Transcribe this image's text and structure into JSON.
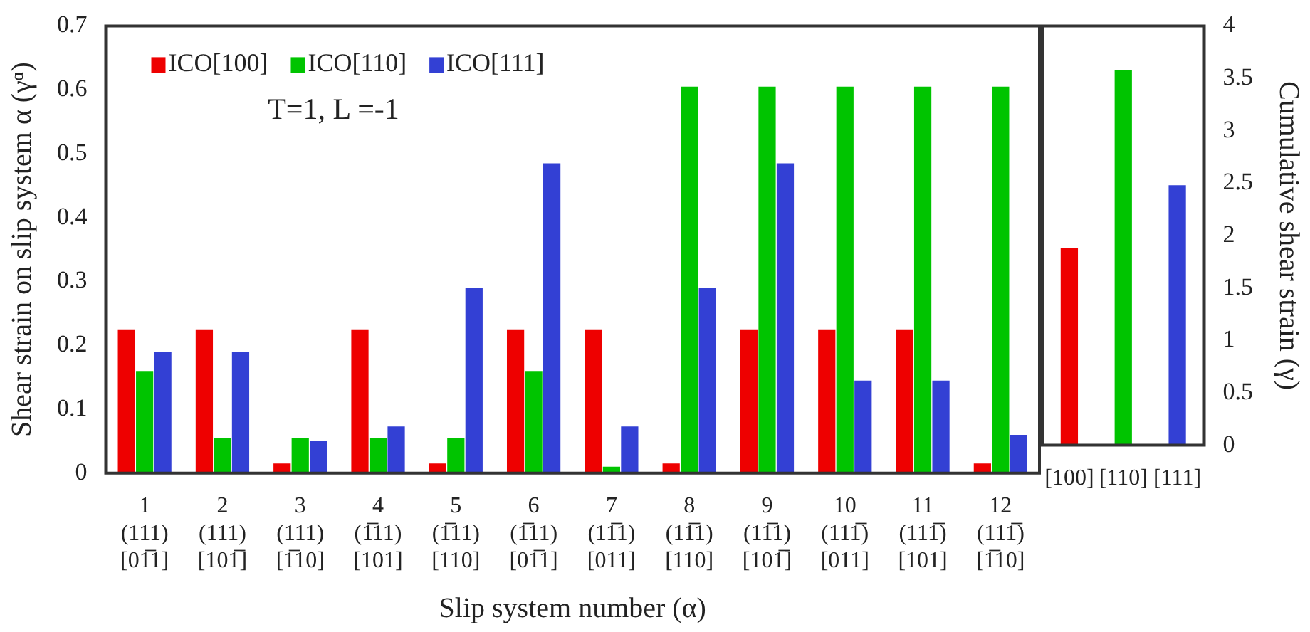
{
  "chart_data": [
    {
      "type": "bar",
      "xlabel": "Slip system number (α)",
      "ylabel": "Shear strain on slip system α (γᵅ)",
      "categories": [
        "1\n(111)\n[01̅1]",
        "2\n(111)\n[101̅]",
        "3\n(111)\n[1̅10]",
        "4\n(1̅11)\n[101]",
        "5\n(1̅11)\n[110]",
        "6\n(1̅11)\n[01̅1]",
        "7\n(11̅1)\n[011]",
        "8\n(11̅1)\n[110]",
        "9\n(11̅1)\n[101̅]",
        "10\n(111̅)\n[011]",
        "11\n(111̅)\n[101]",
        "12\n(111̅)\n[1̅10]"
      ],
      "series": [
        {
          "name": "ICO[100]",
          "color": "#ee0000",
          "values": [
            0.225,
            0.225,
            0.015,
            0.225,
            0.015,
            0.225,
            0.225,
            0.015,
            0.225,
            0.225,
            0.225,
            0.015
          ]
        },
        {
          "name": "ICO[110]",
          "color": "#00c400",
          "values": [
            0.16,
            0.055,
            0.055,
            0.055,
            0.055,
            0.16,
            0.01,
            0.605,
            0.605,
            0.605,
            0.605,
            0.605
          ]
        },
        {
          "name": "ICO[111]",
          "color": "#3340d4",
          "values": [
            0.19,
            0.19,
            0.05,
            0.073,
            0.29,
            0.485,
            0.073,
            0.29,
            0.485,
            0.145,
            0.145,
            0.06
          ]
        }
      ],
      "ylim": [
        0,
        0.7
      ],
      "yticks": [
        0,
        0.1,
        0.2,
        0.3,
        0.4,
        0.5,
        0.6,
        0.7
      ],
      "grid": false,
      "legend": "top left",
      "annotations": [
        "T=1, L =-1"
      ]
    },
    {
      "type": "bar",
      "y2label": "Cumulative shear strain (γ)",
      "categories": [
        "[100]",
        "[110]",
        "[111]"
      ],
      "series": [
        {
          "axis": "y2",
          "colors": [
            "#ee0000",
            "#00c400",
            "#3340d4"
          ],
          "values": [
            1.88,
            3.58,
            2.48
          ]
        }
      ],
      "y2lim": [
        0,
        4
      ],
      "y2ticks": [
        0,
        0.5,
        1,
        1.5,
        2,
        2.5,
        3,
        3.5,
        4
      ],
      "grid": false,
      "legend": false
    }
  ]
}
